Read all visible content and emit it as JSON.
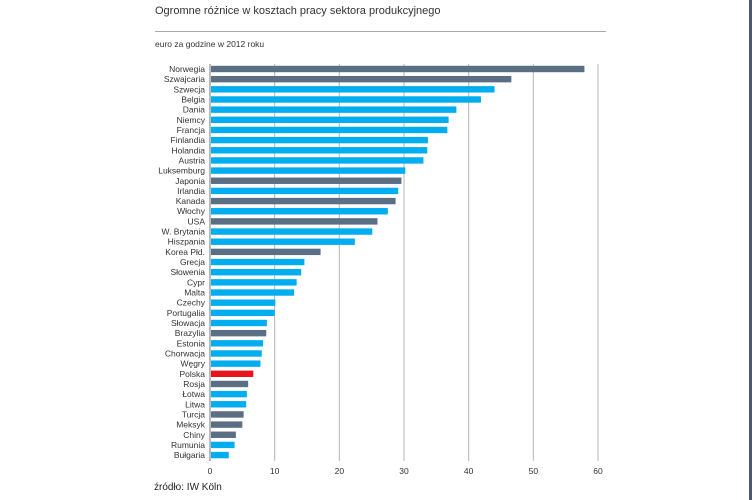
{
  "chart_data": {
    "type": "bar",
    "orientation": "horizontal",
    "title": "Ogromne różnice w kosztach pracy sektora produkcyjnego",
    "subtitle": "euro za godzine w 2012 roku",
    "source": "źródło: IW Köln",
    "xlim": [
      0,
      60
    ],
    "xticks": [
      0,
      10,
      20,
      30,
      40,
      50,
      60
    ],
    "grid": true,
    "colors": {
      "eu": "#00aeef",
      "non_eu": "#5a6e84",
      "highlight": "#e8141b"
    },
    "categories": [
      "Norwegia",
      "Szwajcaria",
      "Szwecja",
      "Belgia",
      "Dania",
      "Niemcy",
      "Francja",
      "Finlandia",
      "Holandia",
      "Austria",
      "Luksemburg",
      "Japonia",
      "Irlandia",
      "Kanada",
      "Włochy",
      "USA",
      "W. Brytania",
      "Hiszpania",
      "Korea Płd.",
      "Grecja",
      "Słowenia",
      "Cypr",
      "Malta",
      "Czechy",
      "Portugalia",
      "Słowacja",
      "Brazylia",
      "Estonia",
      "Chorwacja",
      "Węgry",
      "Polska",
      "Rosja",
      "Łotwa",
      "Litwa",
      "Turcja",
      "Meksyk",
      "Chiny",
      "Rumunia",
      "Bułgaria"
    ],
    "values": [
      57.9,
      46.6,
      44.0,
      41.9,
      38.1,
      36.9,
      36.7,
      33.7,
      33.6,
      33.0,
      30.2,
      29.6,
      29.1,
      28.7,
      27.5,
      25.9,
      25.1,
      22.4,
      17.1,
      14.6,
      14.1,
      13.4,
      13.0,
      10.1,
      10.0,
      8.8,
      8.7,
      8.2,
      8.0,
      7.8,
      6.7,
      5.9,
      5.7,
      5.6,
      5.2,
      5.0,
      4.0,
      3.8,
      2.9
    ],
    "groups": [
      "non_eu",
      "non_eu",
      "eu",
      "eu",
      "eu",
      "eu",
      "eu",
      "eu",
      "eu",
      "eu",
      "eu",
      "non_eu",
      "eu",
      "non_eu",
      "eu",
      "non_eu",
      "eu",
      "eu",
      "non_eu",
      "eu",
      "eu",
      "eu",
      "eu",
      "eu",
      "eu",
      "eu",
      "non_eu",
      "eu",
      "eu",
      "eu",
      "highlight",
      "non_eu",
      "eu",
      "eu",
      "non_eu",
      "non_eu",
      "non_eu",
      "eu",
      "eu"
    ]
  }
}
